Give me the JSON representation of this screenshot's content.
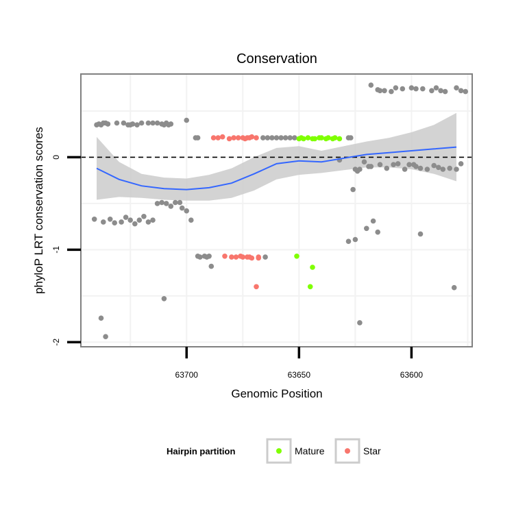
{
  "chart_data": {
    "type": "scatter",
    "title": "Conservation",
    "xlabel": "Genomic Position",
    "ylabel": "phyloP LRT conservation scores",
    "xlim": [
      63747,
      63573
    ],
    "x_reversed": true,
    "ylim": [
      -2.05,
      0.9
    ],
    "xticks": [
      63700,
      63650,
      63600
    ],
    "xtick_labels": [
      "63700",
      "63650",
      "63600"
    ],
    "yticks": [
      0,
      -1,
      -2
    ],
    "ytick_labels": [
      "0",
      "-1",
      "-2"
    ],
    "grid": true,
    "reference_line": {
      "y": 0,
      "style": "dashed"
    },
    "legend": {
      "title": "Hairpin partition",
      "placement": "bottom",
      "entries": [
        {
          "label": "Mature",
          "color": "#7fff00"
        },
        {
          "label": "Star",
          "color": "#f8766d"
        }
      ]
    },
    "colors": {
      "other": "#8c8c8c",
      "mature": "#7fff00",
      "star": "#f8766d",
      "smooth_line": "#3366ff",
      "ribbon": "#c8c8c8",
      "panel_border": "#808080",
      "grid": "#f2f2f2"
    },
    "series": [
      {
        "group": "other",
        "points": [
          [
            63740,
            0.35
          ],
          [
            63739,
            0.36
          ],
          [
            63738,
            0.35
          ],
          [
            63737,
            0.37
          ],
          [
            63736,
            0.37
          ],
          [
            63735,
            0.36
          ],
          [
            63731,
            0.37
          ],
          [
            63728,
            0.37
          ],
          [
            63726,
            0.35
          ],
          [
            63725,
            0.35
          ],
          [
            63724,
            0.36
          ],
          [
            63722,
            0.35
          ],
          [
            63720,
            0.37
          ],
          [
            63717,
            0.37
          ],
          [
            63715,
            0.37
          ],
          [
            63713,
            0.37
          ],
          [
            63711,
            0.36
          ],
          [
            63710,
            0.35
          ],
          [
            63709,
            0.37
          ],
          [
            63708,
            0.35
          ],
          [
            63707,
            0.36
          ],
          [
            63700,
            0.4
          ],
          [
            63696,
            0.21
          ],
          [
            63695,
            0.21
          ],
          [
            63666,
            0.21
          ],
          [
            63664,
            0.21
          ],
          [
            63662,
            0.21
          ],
          [
            63660,
            0.21
          ],
          [
            63658,
            0.21
          ],
          [
            63656,
            0.21
          ],
          [
            63654,
            0.21
          ],
          [
            63652,
            0.21
          ],
          [
            63628,
            0.21
          ],
          [
            63627,
            0.21
          ],
          [
            63618,
            0.78
          ],
          [
            63615,
            0.73
          ],
          [
            63614,
            0.72
          ],
          [
            63612,
            0.72
          ],
          [
            63609,
            0.71
          ],
          [
            63607,
            0.75
          ],
          [
            63604,
            0.74
          ],
          [
            63600,
            0.75
          ],
          [
            63598,
            0.74
          ],
          [
            63595,
            0.74
          ],
          [
            63591,
            0.72
          ],
          [
            63589,
            0.75
          ],
          [
            63587,
            0.72
          ],
          [
            63585,
            0.71
          ],
          [
            63580,
            0.75
          ],
          [
            63578,
            0.72
          ],
          [
            63576,
            0.71
          ],
          [
            63632,
            -0.03
          ],
          [
            63625,
            -0.13
          ],
          [
            63624,
            -0.15
          ],
          [
            63623,
            -0.13
          ],
          [
            63621,
            -0.05
          ],
          [
            63619,
            -0.1
          ],
          [
            63618,
            -0.1
          ],
          [
            63614,
            -0.08
          ],
          [
            63611,
            -0.12
          ],
          [
            63608,
            -0.08
          ],
          [
            63606,
            -0.07
          ],
          [
            63603,
            -0.13
          ],
          [
            63601,
            -0.08
          ],
          [
            63599,
            -0.08
          ],
          [
            63598,
            -0.1
          ],
          [
            63596,
            -0.12
          ],
          [
            63593,
            -0.13
          ],
          [
            63590,
            -0.09
          ],
          [
            63588,
            -0.11
          ],
          [
            63586,
            -0.13
          ],
          [
            63583,
            -0.12
          ],
          [
            63580,
            -0.13
          ],
          [
            63578,
            -0.07
          ],
          [
            63626,
            -0.35
          ],
          [
            63703,
            -0.49
          ],
          [
            63705,
            -0.49
          ],
          [
            63707,
            -0.53
          ],
          [
            63709,
            -0.5
          ],
          [
            63711,
            -0.49
          ],
          [
            63713,
            -0.5
          ],
          [
            63702,
            -0.55
          ],
          [
            63700,
            -0.58
          ],
          [
            63698,
            -0.68
          ],
          [
            63741,
            -0.67
          ],
          [
            63737,
            -0.7
          ],
          [
            63734,
            -0.67
          ],
          [
            63732,
            -0.71
          ],
          [
            63729,
            -0.7
          ],
          [
            63727,
            -0.65
          ],
          [
            63725,
            -0.68
          ],
          [
            63723,
            -0.72
          ],
          [
            63721,
            -0.68
          ],
          [
            63719,
            -0.64
          ],
          [
            63717,
            -0.7
          ],
          [
            63715,
            -0.68
          ],
          [
            63628,
            -0.91
          ],
          [
            63625,
            -0.89
          ],
          [
            63620,
            -0.77
          ],
          [
            63617,
            -0.69
          ],
          [
            63615,
            -0.81
          ],
          [
            63596,
            -0.83
          ],
          [
            63695,
            -1.07
          ],
          [
            63694,
            -1.08
          ],
          [
            63692,
            -1.07
          ],
          [
            63691,
            -1.08
          ],
          [
            63690,
            -1.07
          ],
          [
            63689,
            -1.18
          ],
          [
            63665,
            -1.08
          ],
          [
            63710,
            -1.53
          ],
          [
            63623,
            -1.79
          ],
          [
            63581,
            -1.41
          ],
          [
            63738,
            -1.74
          ],
          [
            63736,
            -1.94
          ]
        ]
      },
      {
        "group": "star",
        "points": [
          [
            63688,
            0.21
          ],
          [
            63686,
            0.21
          ],
          [
            63684,
            0.22
          ],
          [
            63681,
            0.2
          ],
          [
            63679,
            0.21
          ],
          [
            63677,
            0.21
          ],
          [
            63675,
            0.21
          ],
          [
            63674,
            0.2
          ],
          [
            63673,
            0.21
          ],
          [
            63672,
            0.21
          ],
          [
            63671,
            0.22
          ],
          [
            63669,
            0.21
          ],
          [
            63683,
            -1.07
          ],
          [
            63680,
            -1.08
          ],
          [
            63678,
            -1.08
          ],
          [
            63676,
            -1.07
          ],
          [
            63675,
            -1.08
          ],
          [
            63673,
            -1.08
          ],
          [
            63672,
            -1.08
          ],
          [
            63671,
            -1.09
          ],
          [
            63668,
            -1.08
          ],
          [
            63668,
            -1.09
          ],
          [
            63669,
            -1.4
          ]
        ]
      },
      {
        "group": "mature",
        "points": [
          [
            63650,
            0.2
          ],
          [
            63649,
            0.21
          ],
          [
            63648,
            0.2
          ],
          [
            63646,
            0.21
          ],
          [
            63644,
            0.2
          ],
          [
            63643,
            0.2
          ],
          [
            63641,
            0.21
          ],
          [
            63640,
            0.21
          ],
          [
            63638,
            0.2
          ],
          [
            63637,
            0.21
          ],
          [
            63635,
            0.2
          ],
          [
            63634,
            0.21
          ],
          [
            63632,
            0.2
          ],
          [
            63651,
            -1.07
          ],
          [
            63644,
            -1.19
          ],
          [
            63645,
            -1.4
          ]
        ]
      }
    ],
    "smooth": {
      "x": [
        63740,
        63730,
        63720,
        63710,
        63700,
        63690,
        63680,
        63670,
        63660,
        63650,
        63640,
        63630,
        63620,
        63610,
        63600,
        63590,
        63580
      ],
      "y": [
        -0.12,
        -0.24,
        -0.31,
        -0.34,
        -0.35,
        -0.33,
        -0.28,
        -0.18,
        -0.07,
        -0.04,
        -0.05,
        -0.01,
        0.03,
        0.05,
        0.07,
        0.09,
        0.11
      ],
      "lower": [
        -0.46,
        -0.43,
        -0.44,
        -0.46,
        -0.47,
        -0.47,
        -0.44,
        -0.36,
        -0.24,
        -0.19,
        -0.17,
        -0.14,
        -0.11,
        -0.11,
        -0.13,
        -0.18,
        -0.26
      ],
      "upper": [
        0.22,
        -0.05,
        -0.18,
        -0.22,
        -0.23,
        -0.19,
        -0.12,
        0.0,
        0.1,
        0.12,
        0.07,
        0.12,
        0.17,
        0.21,
        0.27,
        0.35,
        0.48
      ]
    }
  }
}
